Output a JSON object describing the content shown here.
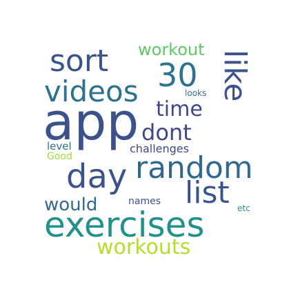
{
  "words": [
    {
      "text": "app",
      "color": "#3b528b"
    },
    {
      "text": "exercises",
      "color": "#21918c"
    },
    {
      "text": "random",
      "color": "#31688e"
    },
    {
      "text": "sort",
      "color": "#3b528b"
    },
    {
      "text": "videos",
      "color": "#2c728e"
    },
    {
      "text": "day",
      "color": "#3b528b"
    },
    {
      "text": "list",
      "color": "#3b528b"
    },
    {
      "text": "30",
      "color": "#2c728e"
    },
    {
      "text": "workouts",
      "color": "#b5de2b"
    },
    {
      "text": "like",
      "color": "#3b528b"
    },
    {
      "text": "dont",
      "color": "#3e4989"
    },
    {
      "text": "time",
      "color": "#3e4989"
    },
    {
      "text": "workout",
      "color": "#5ec962"
    },
    {
      "text": "would",
      "color": "#31688e"
    },
    {
      "text": "challenges",
      "color": "#3e4989"
    },
    {
      "text": "names",
      "color": "#3b528b"
    },
    {
      "text": "level",
      "color": "#2c728e"
    },
    {
      "text": "Good",
      "color": "#a0da39"
    },
    {
      "text": "looks",
      "color": "#2c728e"
    },
    {
      "text": "etc",
      "color": "#21918c"
    }
  ]
}
